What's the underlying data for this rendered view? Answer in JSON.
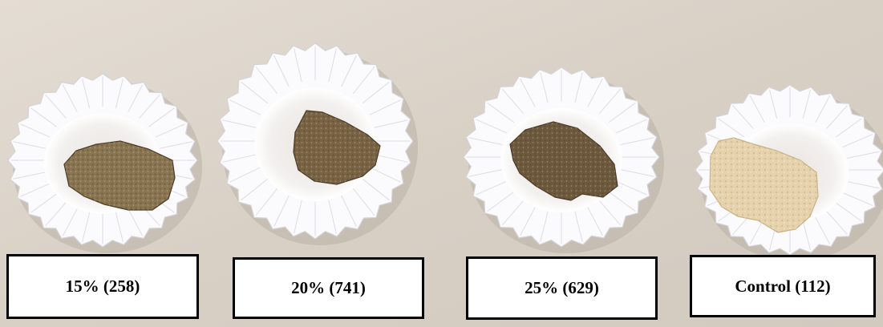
{
  "photo": {
    "background_color": "#d9d2c8",
    "liner_color": "#fbfbfd",
    "samples": [
      {
        "label": "15% (258)",
        "crumb_color": "#8a7552"
      },
      {
        "label": "20% (741)",
        "crumb_color": "#7a6345"
      },
      {
        "label": "25% (629)",
        "crumb_color": "#6d5a3e"
      },
      {
        "label": "Control (112)",
        "crumb_color": "#e6d3ad"
      }
    ]
  }
}
